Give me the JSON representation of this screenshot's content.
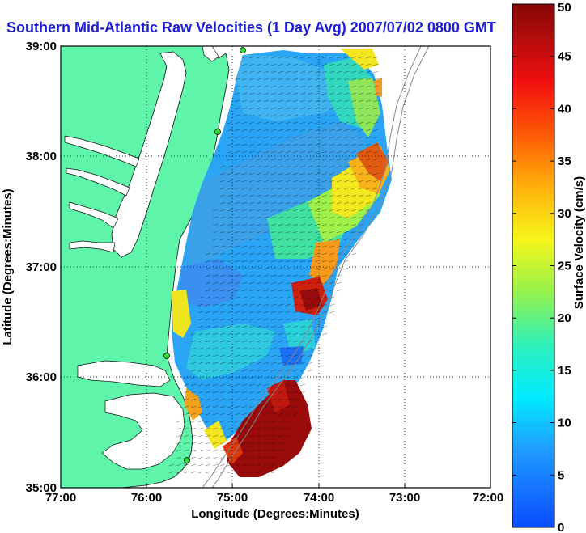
{
  "title": "Southern Mid-Atlantic Raw Velocities (1 Day Avg) 2007/07/02 0800 GMT",
  "axes": {
    "xlabel": "Longitude (Degrees:Minutes)",
    "ylabel": "Latitude (Degrees:Minutes)",
    "xticks": [
      "77:00",
      "76:00",
      "75:00",
      "74:00",
      "73:00",
      "72:00"
    ],
    "yticks": [
      "39:00",
      "38:00",
      "37:00",
      "36:00",
      "35:00"
    ]
  },
  "colorbar": {
    "label": "Surface Velocity (cm/s)",
    "ticks": [
      "0",
      "5",
      "10",
      "15",
      "20",
      "25",
      "30",
      "35",
      "40",
      "45",
      "50"
    ],
    "range": [
      0,
      50
    ],
    "colormap": "jet"
  },
  "colors": {
    "land": "#5ef5ab",
    "title": "#1d1dd6",
    "station": "#33dd33"
  }
}
